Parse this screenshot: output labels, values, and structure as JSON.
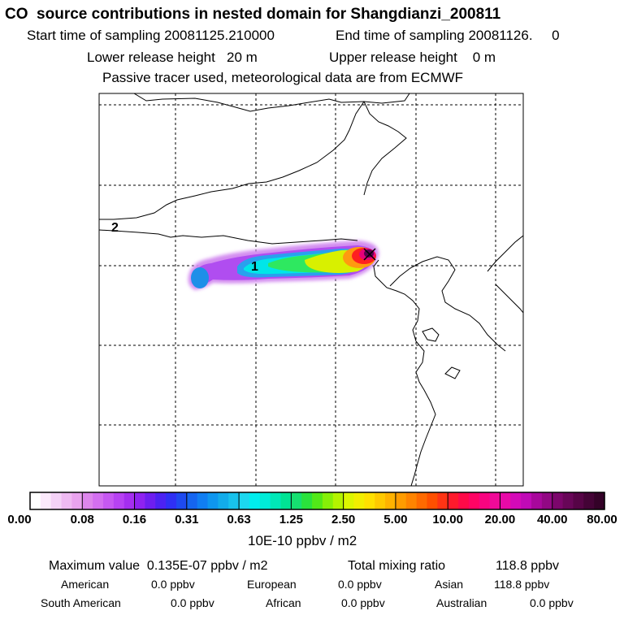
{
  "chart_data": {
    "type": "heatmap",
    "title": "CO  source contributions in nested domain for Shangdianzi_200811",
    "start_time": "Start time of sampling 20081125.210000",
    "end_time": "End time of sampling 20081126.     0",
    "lower_release": "Lower release height   20 m",
    "upper_release": "Upper release height    0 m",
    "note": "Passive tracer used, meteorological data are from ECMWF",
    "grid_labels": [
      "1",
      "2"
    ],
    "colorbar": {
      "ticks": [
        "0.00",
        "0.08",
        "0.16",
        "0.31",
        "0.63",
        "1.25",
        "2.50",
        "5.00",
        "10.00",
        "20.00",
        "40.00",
        "80.00"
      ],
      "unit": "10E-10 ppbv / m2"
    },
    "plume": [
      {
        "lon_frac": 0.2,
        "value": 0.5
      },
      {
        "lon_frac": 0.32,
        "value": 1.0
      },
      {
        "lon_frac": 0.45,
        "value": 1.5
      },
      {
        "lon_frac": 0.55,
        "value": 3.0
      },
      {
        "lon_frac": 0.62,
        "value": 6.0
      },
      {
        "lon_frac": 0.68,
        "value": 20.0
      }
    ]
  },
  "stats": {
    "max_label": "Maximum value  0.135E-07 ppbv / m2",
    "total_label": "Total mixing ratio",
    "total_value": "118.8 ppbv",
    "regions": [
      {
        "name": "American",
        "value": "0.0 ppbv"
      },
      {
        "name": "European",
        "value": "0.0 ppbv"
      },
      {
        "name": "Asian",
        "value": "118.8 ppbv"
      },
      {
        "name": "South American",
        "value": "0.0 ppbv"
      },
      {
        "name": "African",
        "value": "0.0 ppbv"
      },
      {
        "name": "Australian",
        "value": "0.0 ppbv"
      }
    ]
  }
}
